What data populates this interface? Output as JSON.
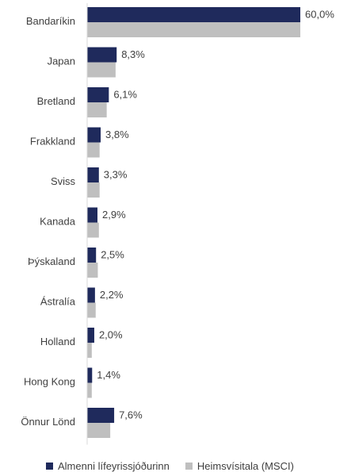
{
  "chart_data": {
    "type": "bar",
    "orientation": "horizontal",
    "categories": [
      "Bandaríkin",
      "Japan",
      "Bretland",
      "Frakkland",
      "Sviss",
      "Kanada",
      "Þýskaland",
      "Ástralía",
      "Holland",
      "Hong Kong",
      "Önnur Lönd"
    ],
    "series": [
      {
        "name": "Almenni lífeyrissjóðurinn",
        "color": "#1f2a5c",
        "values": [
          60.0,
          8.3,
          6.1,
          3.8,
          3.3,
          2.9,
          2.5,
          2.2,
          2.0,
          1.4,
          7.6
        ],
        "labels": [
          "60,0%",
          "8,3%",
          "6,1%",
          "3,8%",
          "3,3%",
          "2,9%",
          "2,5%",
          "2,2%",
          "2,0%",
          "1,4%",
          "7,6%"
        ]
      },
      {
        "name": "Heimsvísitala (MSCI)",
        "color": "#bfbfbf",
        "values": [
          60.0,
          8.0,
          5.5,
          3.5,
          3.5,
          3.3,
          3.0,
          2.4,
          1.3,
          1.3,
          6.5
        ]
      }
    ],
    "xlim": [
      0,
      62
    ],
    "legend_position": "bottom",
    "grid": false
  }
}
